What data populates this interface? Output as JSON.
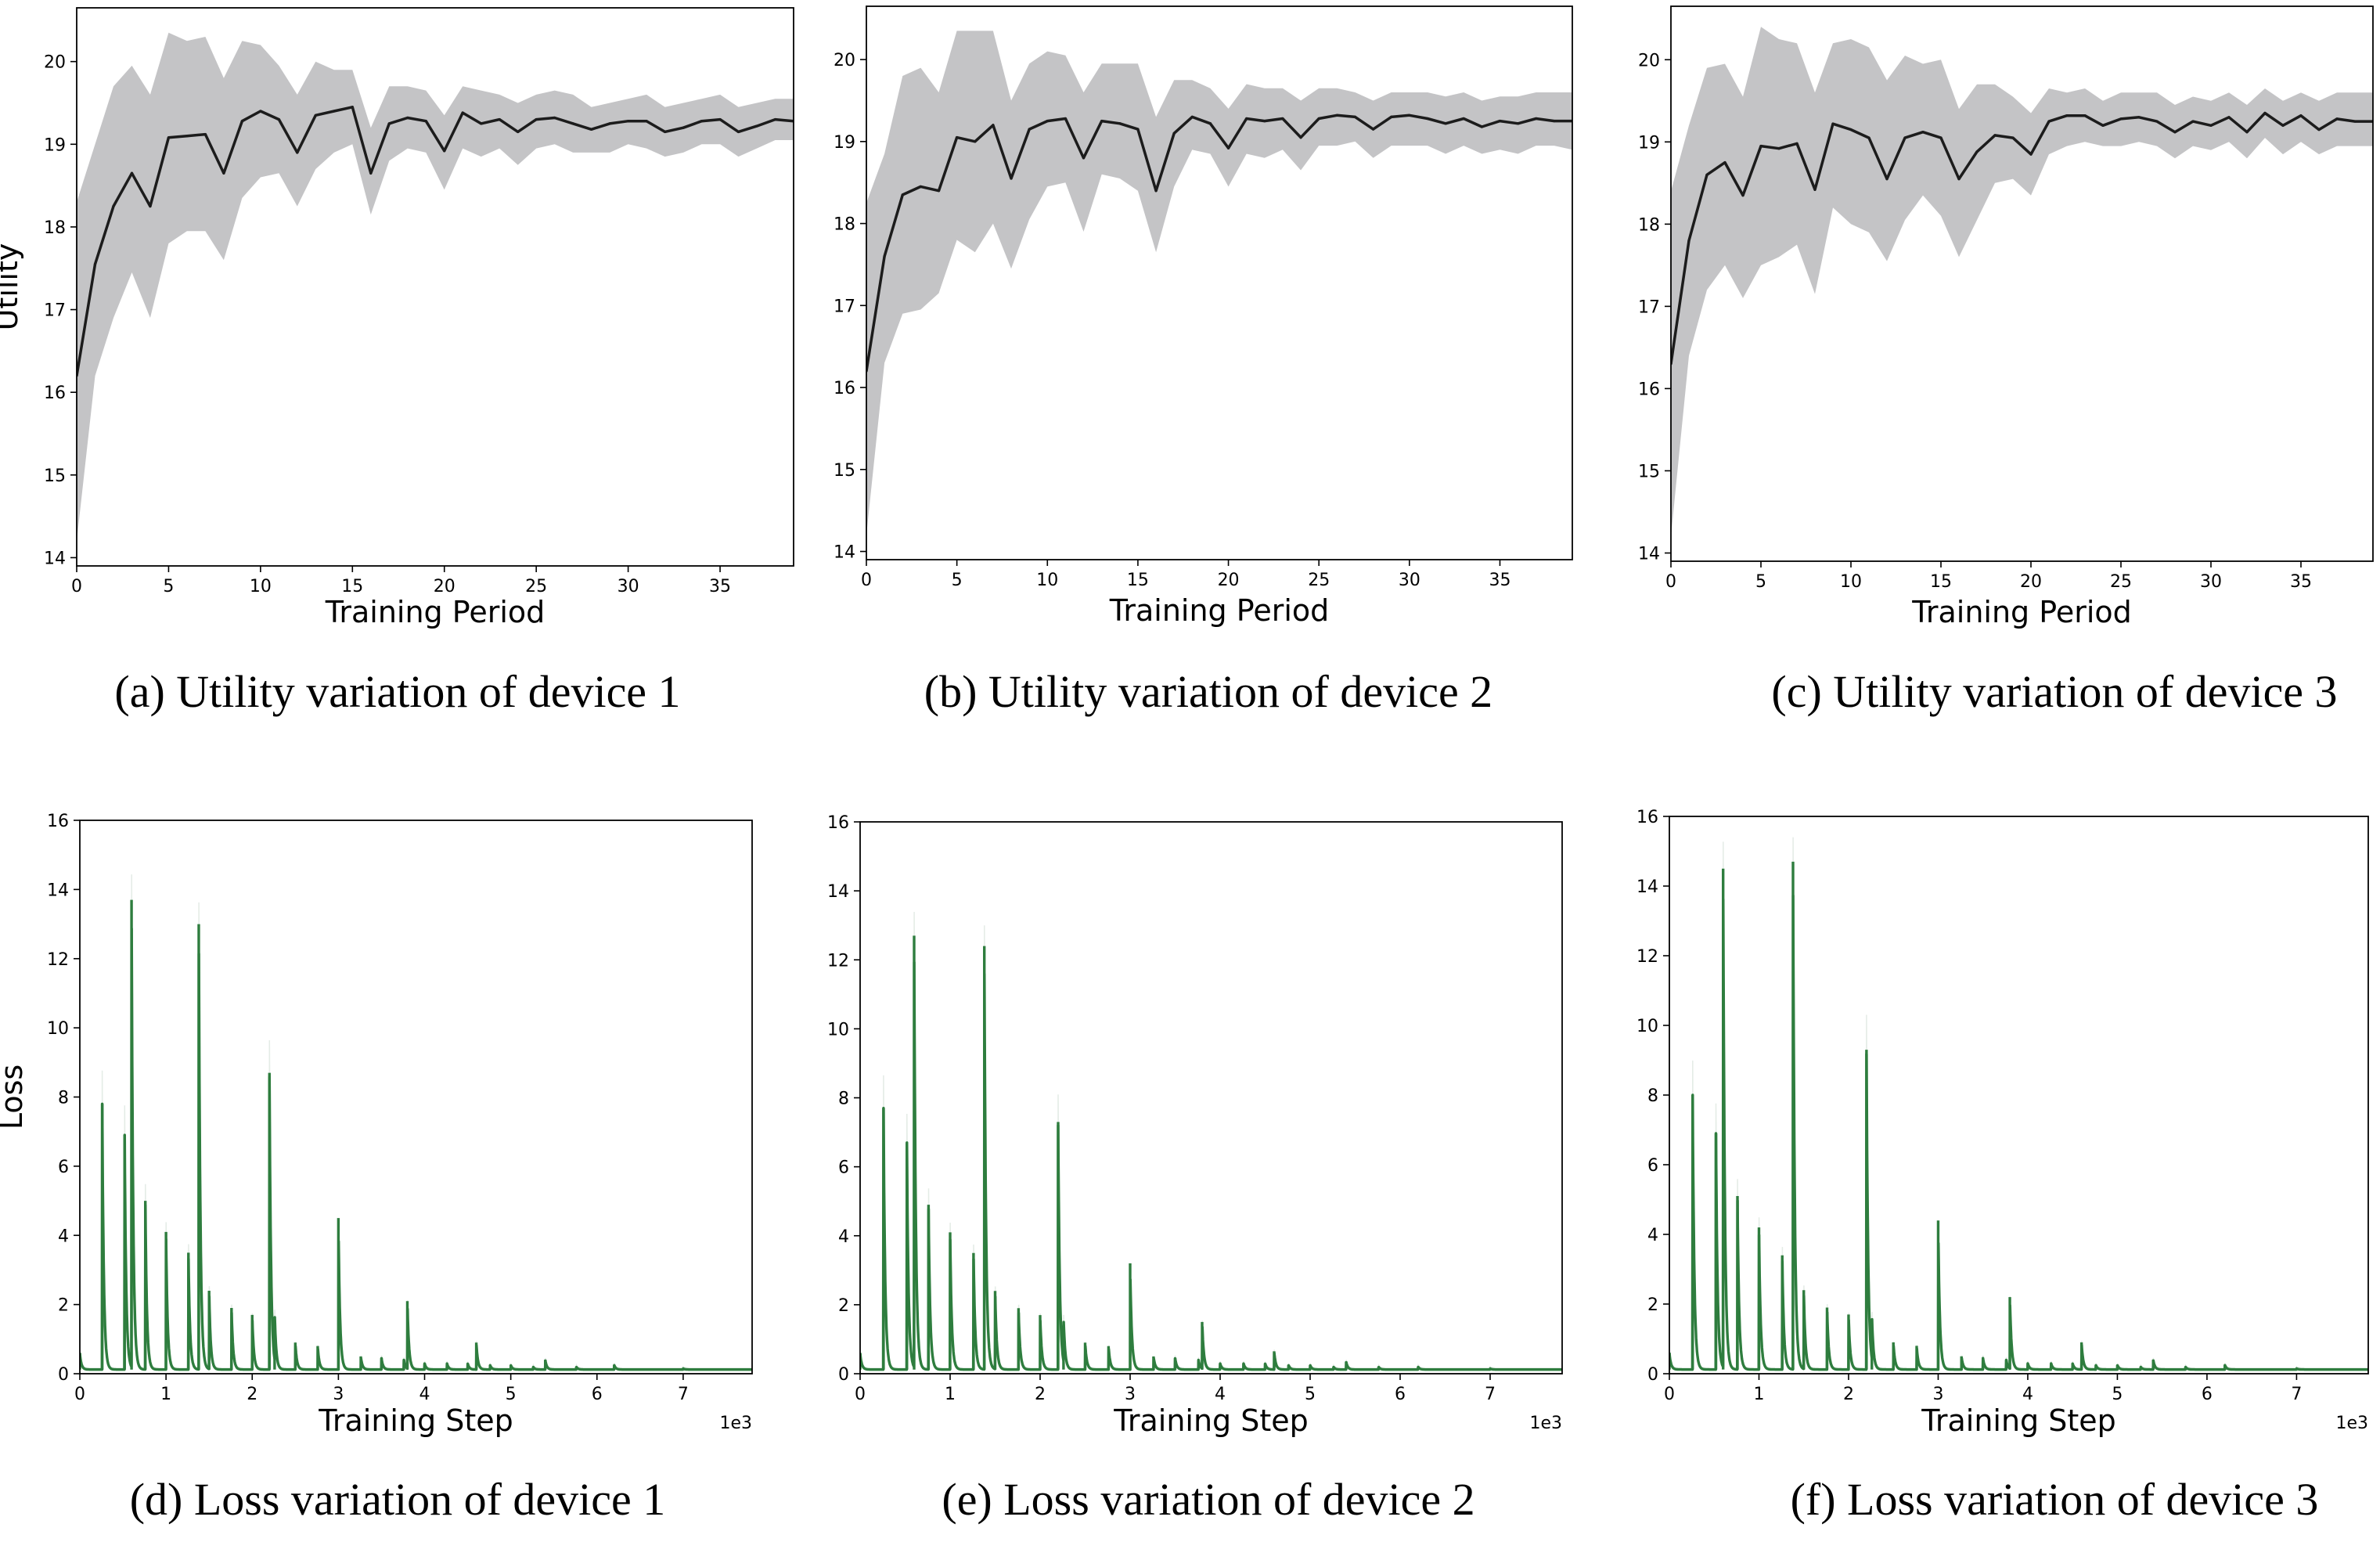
{
  "colors": {
    "band": "#c4c4c6",
    "line": "#1c1c1c",
    "loss": "#2e7d3e",
    "axis": "#000000"
  },
  "chart_data": [
    {
      "id": "a",
      "type": "line",
      "caption": "(a)  Utility variation of device 1",
      "xlabel": "Training Period",
      "ylabel": "Utility",
      "xlim": [
        0,
        39
      ],
      "ylim": [
        13.9,
        20.65
      ],
      "xticks": [
        "0",
        "5",
        "10",
        "15",
        "20",
        "25",
        "30",
        "35"
      ],
      "yticks": [
        "14",
        "15",
        "16",
        "17",
        "18",
        "19",
        "20"
      ],
      "x": [
        0,
        1,
        2,
        3,
        4,
        5,
        6,
        7,
        8,
        9,
        10,
        11,
        12,
        13,
        14,
        15,
        16,
        17,
        18,
        19,
        20,
        21,
        22,
        23,
        24,
        25,
        26,
        27,
        28,
        29,
        30,
        31,
        32,
        33,
        34,
        35,
        36,
        37,
        38,
        39
      ],
      "mean": [
        16.2,
        17.55,
        18.25,
        18.65,
        18.25,
        19.08,
        19.1,
        19.12,
        18.65,
        19.28,
        19.4,
        19.3,
        18.9,
        19.35,
        19.4,
        19.45,
        18.65,
        19.25,
        19.32,
        19.28,
        18.92,
        19.38,
        19.25,
        19.3,
        19.15,
        19.3,
        19.32,
        19.25,
        19.18,
        19.25,
        19.28,
        19.28,
        19.15,
        19.2,
        19.28,
        19.3,
        19.15,
        19.22,
        19.3,
        19.28
      ],
      "upper": [
        18.3,
        19.0,
        19.7,
        19.95,
        19.6,
        20.35,
        20.25,
        20.3,
        19.8,
        20.25,
        20.2,
        19.95,
        19.6,
        20.0,
        19.9,
        19.9,
        19.2,
        19.7,
        19.7,
        19.65,
        19.35,
        19.7,
        19.65,
        19.6,
        19.5,
        19.6,
        19.65,
        19.6,
        19.45,
        19.5,
        19.55,
        19.6,
        19.45,
        19.5,
        19.55,
        19.6,
        19.45,
        19.5,
        19.55,
        19.55
      ],
      "lower": [
        14.2,
        16.2,
        16.9,
        17.45,
        16.9,
        17.8,
        17.95,
        17.95,
        17.6,
        18.35,
        18.6,
        18.65,
        18.25,
        18.7,
        18.9,
        19.0,
        18.15,
        18.8,
        18.95,
        18.9,
        18.45,
        18.95,
        18.85,
        18.95,
        18.75,
        18.95,
        19.0,
        18.9,
        18.9,
        18.9,
        19.0,
        18.95,
        18.85,
        18.9,
        19.0,
        19.0,
        18.85,
        18.95,
        19.05,
        19.05
      ]
    },
    {
      "id": "b",
      "type": "line",
      "caption": "(b)  Utility variation of device 2",
      "xlabel": "Training Period",
      "ylabel": "",
      "xlim": [
        0,
        39
      ],
      "ylim": [
        13.9,
        20.65
      ],
      "xticks": [
        "0",
        "5",
        "10",
        "15",
        "20",
        "25",
        "30",
        "35"
      ],
      "yticks": [
        "14",
        "15",
        "16",
        "17",
        "18",
        "19",
        "20"
      ],
      "x": [
        0,
        1,
        2,
        3,
        4,
        5,
        6,
        7,
        8,
        9,
        10,
        11,
        12,
        13,
        14,
        15,
        16,
        17,
        18,
        19,
        20,
        21,
        22,
        23,
        24,
        25,
        26,
        27,
        28,
        29,
        30,
        31,
        32,
        33,
        34,
        35,
        36,
        37,
        38,
        39
      ],
      "mean": [
        16.2,
        17.6,
        18.35,
        18.45,
        18.4,
        19.05,
        19.0,
        19.2,
        18.55,
        19.15,
        19.25,
        19.28,
        18.8,
        19.25,
        19.22,
        19.15,
        18.4,
        19.1,
        19.3,
        19.22,
        18.92,
        19.28,
        19.25,
        19.28,
        19.05,
        19.28,
        19.32,
        19.3,
        19.15,
        19.3,
        19.32,
        19.28,
        19.22,
        19.28,
        19.18,
        19.25,
        19.22,
        19.28,
        19.25,
        19.25
      ],
      "upper": [
        18.25,
        18.85,
        19.8,
        19.9,
        19.6,
        20.35,
        20.35,
        20.35,
        19.5,
        19.95,
        20.1,
        20.05,
        19.6,
        19.95,
        19.95,
        19.95,
        19.3,
        19.75,
        19.75,
        19.65,
        19.4,
        19.7,
        19.65,
        19.65,
        19.5,
        19.65,
        19.65,
        19.6,
        19.5,
        19.6,
        19.6,
        19.6,
        19.55,
        19.6,
        19.5,
        19.55,
        19.55,
        19.6,
        19.6,
        19.6
      ],
      "lower": [
        14.2,
        16.3,
        16.9,
        16.95,
        17.15,
        17.8,
        17.65,
        18.0,
        17.45,
        18.05,
        18.45,
        18.5,
        17.9,
        18.6,
        18.55,
        18.4,
        17.65,
        18.45,
        18.9,
        18.85,
        18.45,
        18.85,
        18.8,
        18.9,
        18.65,
        18.95,
        18.95,
        19.0,
        18.8,
        18.95,
        18.95,
        18.95,
        18.85,
        18.95,
        18.85,
        18.9,
        18.85,
        18.95,
        18.95,
        18.9
      ]
    },
    {
      "id": "c",
      "type": "line",
      "caption": "(c)  Utility variation of device 3",
      "xlabel": "Training Period",
      "ylabel": "",
      "xlim": [
        0,
        39
      ],
      "ylim": [
        13.9,
        20.65
      ],
      "xticks": [
        "0",
        "5",
        "10",
        "15",
        "20",
        "25",
        "30",
        "35"
      ],
      "yticks": [
        "14",
        "15",
        "16",
        "17",
        "18",
        "19",
        "20"
      ],
      "x": [
        0,
        1,
        2,
        3,
        4,
        5,
        6,
        7,
        8,
        9,
        10,
        11,
        12,
        13,
        14,
        15,
        16,
        17,
        18,
        19,
        20,
        21,
        22,
        23,
        24,
        25,
        26,
        27,
        28,
        29,
        30,
        31,
        32,
        33,
        34,
        35,
        36,
        37,
        38,
        39
      ],
      "mean": [
        16.3,
        17.8,
        18.6,
        18.75,
        18.35,
        18.95,
        18.92,
        18.98,
        18.42,
        19.22,
        19.15,
        19.05,
        18.55,
        19.05,
        19.12,
        19.05,
        18.55,
        18.88,
        19.08,
        19.05,
        18.85,
        19.25,
        19.32,
        19.32,
        19.2,
        19.28,
        19.3,
        19.25,
        19.12,
        19.25,
        19.2,
        19.3,
        19.12,
        19.35,
        19.2,
        19.32,
        19.15,
        19.28,
        19.25,
        19.25
      ],
      "upper": [
        18.4,
        19.2,
        19.9,
        19.95,
        19.55,
        20.4,
        20.25,
        20.2,
        19.6,
        20.2,
        20.25,
        20.15,
        19.75,
        20.05,
        19.95,
        20.0,
        19.4,
        19.7,
        19.7,
        19.55,
        19.35,
        19.65,
        19.6,
        19.65,
        19.5,
        19.6,
        19.6,
        19.6,
        19.45,
        19.55,
        19.5,
        19.6,
        19.45,
        19.65,
        19.5,
        19.6,
        19.5,
        19.6,
        19.6,
        19.6
      ],
      "lower": [
        14.2,
        16.4,
        17.2,
        17.5,
        17.1,
        17.5,
        17.6,
        17.75,
        17.15,
        18.2,
        18.0,
        17.9,
        17.55,
        18.05,
        18.35,
        18.1,
        17.6,
        18.05,
        18.5,
        18.55,
        18.35,
        18.85,
        18.95,
        19.0,
        18.95,
        18.95,
        19.0,
        18.95,
        18.8,
        18.95,
        18.9,
        19.0,
        18.8,
        19.05,
        18.85,
        19.0,
        18.85,
        18.95,
        18.95,
        18.95
      ]
    },
    {
      "id": "d",
      "type": "line",
      "caption": "(d)  Loss variation of device 1",
      "xlabel": "Training Step",
      "ylabel": "Loss",
      "sci_label": "1e3",
      "xlim": [
        0,
        7.8
      ],
      "ylim": [
        0,
        16
      ],
      "xticks": [
        "0",
        "1",
        "2",
        "3",
        "4",
        "5",
        "6",
        "7"
      ],
      "yticks": [
        "0",
        "2",
        "4",
        "6",
        "8",
        "10",
        "12",
        "14",
        "16"
      ],
      "baseline": 0.12,
      "peaks": [
        {
          "x": 0.0,
          "y": 0.6
        },
        {
          "x": 0.26,
          "y": 7.8
        },
        {
          "x": 0.52,
          "y": 6.9
        },
        {
          "x": 0.6,
          "y": 13.7
        },
        {
          "x": 0.76,
          "y": 5.0
        },
        {
          "x": 1.0,
          "y": 4.1
        },
        {
          "x": 1.26,
          "y": 3.5
        },
        {
          "x": 1.38,
          "y": 13.0
        },
        {
          "x": 1.5,
          "y": 2.4
        },
        {
          "x": 1.76,
          "y": 1.9
        },
        {
          "x": 2.0,
          "y": 1.7
        },
        {
          "x": 2.2,
          "y": 8.7
        },
        {
          "x": 2.26,
          "y": 1.5
        },
        {
          "x": 2.5,
          "y": 0.9
        },
        {
          "x": 2.76,
          "y": 0.8
        },
        {
          "x": 3.0,
          "y": 4.5
        },
        {
          "x": 3.26,
          "y": 0.5
        },
        {
          "x": 3.5,
          "y": 0.45
        },
        {
          "x": 3.76,
          "y": 0.4
        },
        {
          "x": 3.8,
          "y": 2.1
        },
        {
          "x": 4.0,
          "y": 0.3
        },
        {
          "x": 4.26,
          "y": 0.3
        },
        {
          "x": 4.5,
          "y": 0.3
        },
        {
          "x": 4.6,
          "y": 0.9
        },
        {
          "x": 4.76,
          "y": 0.25
        },
        {
          "x": 5.0,
          "y": 0.25
        },
        {
          "x": 5.26,
          "y": 0.2
        },
        {
          "x": 5.4,
          "y": 0.4
        },
        {
          "x": 5.76,
          "y": 0.2
        },
        {
          "x": 6.2,
          "y": 0.25
        },
        {
          "x": 7.0,
          "y": 0.15
        }
      ]
    },
    {
      "id": "e",
      "type": "line",
      "caption": "(e)  Loss variation of device 2",
      "xlabel": "Training Step",
      "ylabel": "",
      "sci_label": "1e3",
      "xlim": [
        0,
        7.8
      ],
      "ylim": [
        0,
        16
      ],
      "xticks": [
        "0",
        "1",
        "2",
        "3",
        "4",
        "5",
        "6",
        "7"
      ],
      "yticks": [
        "0",
        "2",
        "4",
        "6",
        "8",
        "10",
        "12",
        "14",
        "16"
      ],
      "baseline": 0.12,
      "peaks": [
        {
          "x": 0.0,
          "y": 0.6
        },
        {
          "x": 0.26,
          "y": 7.7
        },
        {
          "x": 0.52,
          "y": 6.7
        },
        {
          "x": 0.6,
          "y": 12.7
        },
        {
          "x": 0.76,
          "y": 4.9
        },
        {
          "x": 1.0,
          "y": 4.1
        },
        {
          "x": 1.26,
          "y": 3.5
        },
        {
          "x": 1.38,
          "y": 12.4
        },
        {
          "x": 1.5,
          "y": 2.4
        },
        {
          "x": 1.76,
          "y": 1.9
        },
        {
          "x": 2.0,
          "y": 1.7
        },
        {
          "x": 2.2,
          "y": 7.3
        },
        {
          "x": 2.26,
          "y": 1.4
        },
        {
          "x": 2.5,
          "y": 0.9
        },
        {
          "x": 2.76,
          "y": 0.8
        },
        {
          "x": 3.0,
          "y": 3.2
        },
        {
          "x": 3.26,
          "y": 0.5
        },
        {
          "x": 3.5,
          "y": 0.45
        },
        {
          "x": 3.76,
          "y": 0.4
        },
        {
          "x": 3.8,
          "y": 1.5
        },
        {
          "x": 4.0,
          "y": 0.3
        },
        {
          "x": 4.26,
          "y": 0.3
        },
        {
          "x": 4.5,
          "y": 0.3
        },
        {
          "x": 4.6,
          "y": 0.65
        },
        {
          "x": 4.76,
          "y": 0.25
        },
        {
          "x": 5.0,
          "y": 0.25
        },
        {
          "x": 5.26,
          "y": 0.2
        },
        {
          "x": 5.4,
          "y": 0.35
        },
        {
          "x": 5.76,
          "y": 0.2
        },
        {
          "x": 6.2,
          "y": 0.2
        },
        {
          "x": 7.0,
          "y": 0.15
        }
      ]
    },
    {
      "id": "f",
      "type": "line",
      "caption": "(f)  Loss variation of device 3",
      "xlabel": "Training Step",
      "ylabel": "",
      "sci_label": "1e3",
      "xlim": [
        0,
        7.8
      ],
      "ylim": [
        0,
        16
      ],
      "xticks": [
        "0",
        "1",
        "2",
        "3",
        "4",
        "5",
        "6",
        "7"
      ],
      "yticks": [
        "0",
        "2",
        "4",
        "6",
        "8",
        "10",
        "12",
        "14",
        "16"
      ],
      "baseline": 0.12,
      "peaks": [
        {
          "x": 0.0,
          "y": 0.6
        },
        {
          "x": 0.26,
          "y": 8.0
        },
        {
          "x": 0.52,
          "y": 6.9
        },
        {
          "x": 0.6,
          "y": 14.5
        },
        {
          "x": 0.76,
          "y": 5.1
        },
        {
          "x": 1.0,
          "y": 4.2
        },
        {
          "x": 1.26,
          "y": 3.4
        },
        {
          "x": 1.38,
          "y": 14.7
        },
        {
          "x": 1.5,
          "y": 2.4
        },
        {
          "x": 1.76,
          "y": 1.9
        },
        {
          "x": 2.0,
          "y": 1.7
        },
        {
          "x": 2.2,
          "y": 9.3
        },
        {
          "x": 2.26,
          "y": 1.4
        },
        {
          "x": 2.5,
          "y": 0.9
        },
        {
          "x": 2.76,
          "y": 0.8
        },
        {
          "x": 3.0,
          "y": 4.4
        },
        {
          "x": 3.26,
          "y": 0.5
        },
        {
          "x": 3.5,
          "y": 0.45
        },
        {
          "x": 3.76,
          "y": 0.4
        },
        {
          "x": 3.8,
          "y": 2.2
        },
        {
          "x": 4.0,
          "y": 0.3
        },
        {
          "x": 4.26,
          "y": 0.3
        },
        {
          "x": 4.5,
          "y": 0.3
        },
        {
          "x": 4.6,
          "y": 0.9
        },
        {
          "x": 4.76,
          "y": 0.25
        },
        {
          "x": 5.0,
          "y": 0.25
        },
        {
          "x": 5.26,
          "y": 0.2
        },
        {
          "x": 5.4,
          "y": 0.4
        },
        {
          "x": 5.76,
          "y": 0.2
        },
        {
          "x": 6.2,
          "y": 0.25
        },
        {
          "x": 7.0,
          "y": 0.15
        }
      ]
    }
  ]
}
